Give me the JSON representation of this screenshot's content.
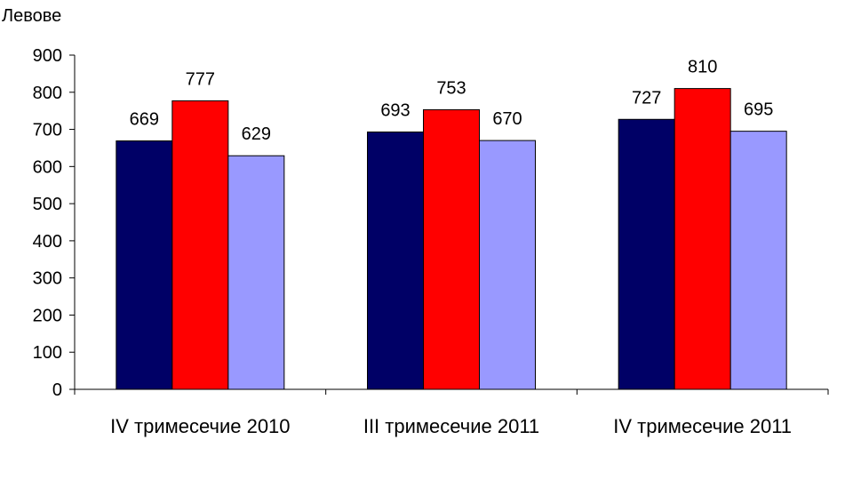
{
  "chart_data": {
    "type": "bar",
    "ylabel": "Левове",
    "xlabel": "",
    "title": "",
    "ylim": [
      0,
      900
    ],
    "yticks": [
      0,
      100,
      200,
      300,
      400,
      500,
      600,
      700,
      800,
      900
    ],
    "grid": false,
    "legend": "none",
    "categories": [
      "IV тримесечие 2010",
      "III тримесечие 2011",
      "IV тримесечие 2011"
    ],
    "series": [
      {
        "values": [
          669,
          693,
          727
        ],
        "color": "#000066"
      },
      {
        "values": [
          777,
          753,
          810
        ],
        "color": "#ff0000"
      },
      {
        "values": [
          629,
          670,
          695
        ],
        "color": "#9999ff"
      }
    ]
  }
}
